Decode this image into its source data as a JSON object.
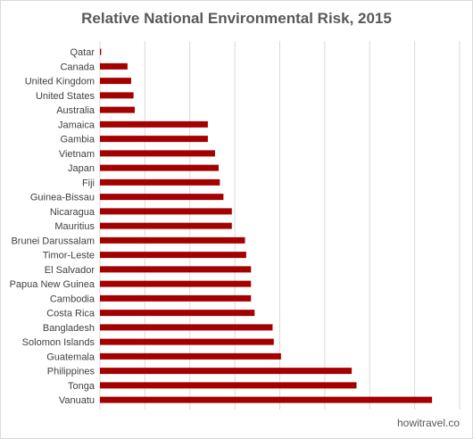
{
  "chart_data": {
    "type": "bar",
    "orientation": "horizontal",
    "title": "Relative National Environmental Risk, 2015",
    "xlabel": "",
    "ylabel": "",
    "categories": [
      "Qatar",
      "Canada",
      "United Kingdom",
      "United States",
      "Australia",
      "Jamaica",
      "Gambia",
      "Vietnam",
      "Japan",
      "Fiji",
      "Guinea-Bissau",
      "Nicaragua",
      "Mauritius",
      "Brunei Darussalam",
      "Timor-Leste",
      "El Salvador",
      "Papua New Guinea",
      "Cambodia",
      "Costa Rica",
      "Bangladesh",
      "Solomon Islands",
      "Guatemala",
      "Philippines",
      "Tonga",
      "Vanuatu"
    ],
    "values": [
      0.1,
      2.3,
      2.6,
      2.8,
      2.9,
      9.0,
      9.0,
      9.6,
      9.9,
      10.0,
      10.3,
      11.0,
      11.0,
      12.1,
      12.2,
      12.6,
      12.6,
      12.6,
      12.9,
      14.4,
      14.5,
      15.1,
      21.0,
      21.4,
      27.7
    ],
    "xlim": [
      0,
      30
    ],
    "gridlines": [
      0,
      3.75,
      7.5,
      11.25,
      15,
      18.75,
      22.5,
      26.25,
      30
    ],
    "grid": true,
    "legend": "none",
    "bar_color": "#a50000",
    "grid_color": "#d9d9d9"
  },
  "watermark": "howitravel.co"
}
